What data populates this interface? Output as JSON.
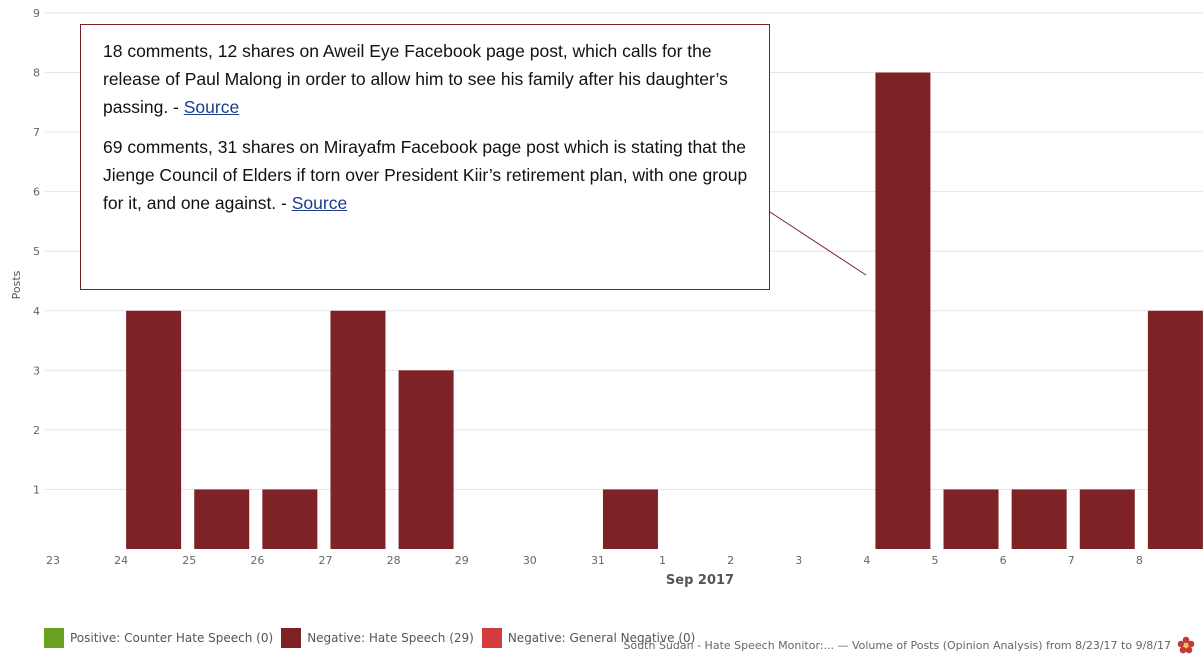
{
  "chart_data": {
    "type": "bar",
    "categories": [
      "23",
      "24",
      "25",
      "26",
      "27",
      "28",
      "29",
      "30",
      "31",
      "1",
      "2",
      "3",
      "4",
      "5",
      "6",
      "7",
      "8"
    ],
    "series": [
      {
        "name": "Negative: Hate Speech (29)",
        "values": [
          0,
          4,
          1,
          1,
          4,
          3,
          0,
          0,
          1,
          0,
          0,
          0,
          8,
          1,
          1,
          1,
          4
        ],
        "color": "#7f2226"
      }
    ],
    "month_label": "Sep 2017",
    "ylabel": "Posts",
    "ylim": [
      0,
      9
    ],
    "yticks": [
      1,
      2,
      3,
      4,
      5,
      6,
      7,
      8,
      9
    ],
    "grid": true
  },
  "annotation": {
    "paragraph1": "18 comments, 12 shares on Aweil Eye Facebook page post, which calls for the release of Paul Malong in order to allow him to see his family after his daughter’s passing. - ",
    "paragraph2": "69 comments, 31 shares on Mirayafm Facebook page post which is stating that the Jienge Council of Elders if torn over President Kiir’s retirement plan, with one group for it, and one against. - ",
    "link_label": "Source",
    "border_color": "#7c1f24"
  },
  "legend": [
    {
      "label": "Positive: Counter Hate Speech (0)",
      "color": "#6aa121"
    },
    {
      "label": "Negative: Hate Speech (29)",
      "color": "#7f2226"
    },
    {
      "label": "Negative: General Negative (0)",
      "color": "#d23c3c"
    }
  ],
  "footer": {
    "text": "South Sudan - Hate Speech Monitor:... — Volume of Posts (Opinion Analysis) from 8/23/17 to 9/8/17",
    "icon": "flower-logo-icon"
  }
}
